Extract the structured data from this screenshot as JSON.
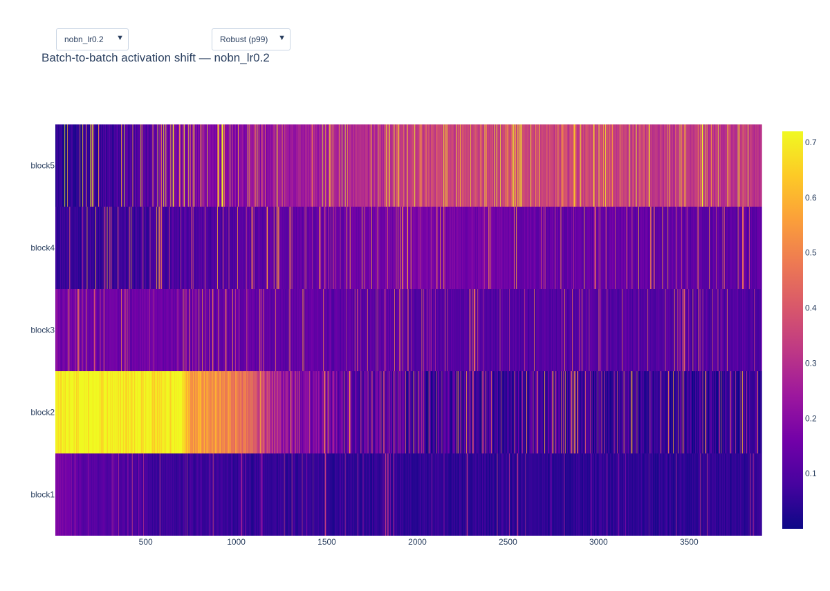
{
  "controls": {
    "run_dropdown": {
      "selected": "nobn_lr0.2"
    },
    "scale_dropdown": {
      "selected": "Robust (p99)"
    },
    "arrow_icon": "triangle-down"
  },
  "chart_data": {
    "type": "heatmap",
    "title": "Batch-to-batch activation shift — nobn_lr0.2",
    "xlabel": "",
    "ylabel": "",
    "colorscale": "plasma",
    "colors": [
      "#0d0887",
      "#46039f",
      "#7201a8",
      "#9c179e",
      "#bd3786",
      "#d8576b",
      "#ed7953",
      "#fb9f3a",
      "#fdca26",
      "#f0f921"
    ],
    "xlim": [
      1,
      3900
    ],
    "x_ticks": [
      500,
      1000,
      1500,
      2000,
      2500,
      3000,
      3500
    ],
    "x_tick_labels": [
      "500",
      "1000",
      "1500",
      "2000",
      "2500",
      "3000",
      "3500"
    ],
    "y_categories": [
      "block1",
      "block2",
      "block3",
      "block4",
      "block5"
    ],
    "zlim": [
      0,
      0.72
    ],
    "colorbar_ticks": [
      0.1,
      0.2,
      0.3,
      0.4,
      0.5,
      0.6,
      0.7
    ],
    "colorbar_tick_labels": [
      "0.1",
      "0.2",
      "0.3",
      "0.4",
      "0.5",
      "0.6",
      "0.7"
    ],
    "rows": [
      {
        "name": "block1",
        "profile": [
          [
            0,
            0.18
          ],
          [
            150,
            0.12
          ],
          [
            600,
            0.07
          ],
          [
            1500,
            0.05
          ],
          [
            3900,
            0.045
          ]
        ],
        "spike_prob": 0.05,
        "spike_value": 0.3,
        "noise": 0.035
      },
      {
        "name": "block2",
        "profile": [
          [
            0,
            0.72
          ],
          [
            700,
            0.72
          ],
          [
            760,
            0.55
          ],
          [
            1000,
            0.5
          ],
          [
            1300,
            0.2
          ],
          [
            2000,
            0.08
          ],
          [
            3900,
            0.05
          ]
        ],
        "spike_prob": 0.12,
        "spike_value": 0.5,
        "noise": 0.09
      },
      {
        "name": "block3",
        "profile": [
          [
            0,
            0.16
          ],
          [
            1000,
            0.14
          ],
          [
            2000,
            0.11
          ],
          [
            3900,
            0.1
          ]
        ],
        "spike_prob": 0.09,
        "spike_value": 0.45,
        "noise": 0.04
      },
      {
        "name": "block4",
        "profile": [
          [
            0,
            0.06
          ],
          [
            250,
            0.06
          ],
          [
            700,
            0.09
          ],
          [
            1500,
            0.14
          ],
          [
            2100,
            0.18
          ],
          [
            2700,
            0.14
          ],
          [
            3900,
            0.12
          ]
        ],
        "spike_prob": 0.09,
        "spike_value": 0.5,
        "noise": 0.04
      },
      {
        "name": "block5",
        "profile": [
          [
            0,
            0.05
          ],
          [
            150,
            0.05
          ],
          [
            700,
            0.16
          ],
          [
            1400,
            0.25
          ],
          [
            2100,
            0.35
          ],
          [
            3000,
            0.35
          ],
          [
            3900,
            0.3
          ]
        ],
        "spike_prob": 0.12,
        "spike_value": 0.65,
        "noise": 0.06
      }
    ]
  }
}
